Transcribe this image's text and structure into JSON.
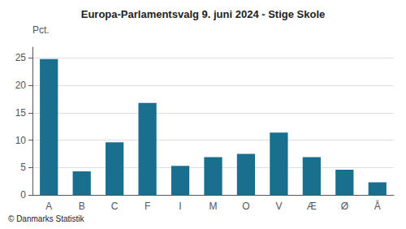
{
  "chart_data": {
    "type": "bar",
    "title": "Europa-Parlamentsvalg 9. juni 2024 - Stige Skole",
    "categories": [
      "A",
      "B",
      "C",
      "F",
      "I",
      "M",
      "O",
      "V",
      "Æ",
      "Ø",
      "Å"
    ],
    "values": [
      24.8,
      4.3,
      9.6,
      16.8,
      5.3,
      6.9,
      7.5,
      11.4,
      6.9,
      4.6,
      2.3
    ],
    "color": "#1a6e8e",
    "ylabel": "Pct.",
    "ylim": [
      0,
      27
    ],
    "yticks": [
      0,
      5,
      10,
      15,
      20,
      25
    ],
    "grid": true,
    "annotations": [
      "© Danmarks Statistik"
    ]
  }
}
